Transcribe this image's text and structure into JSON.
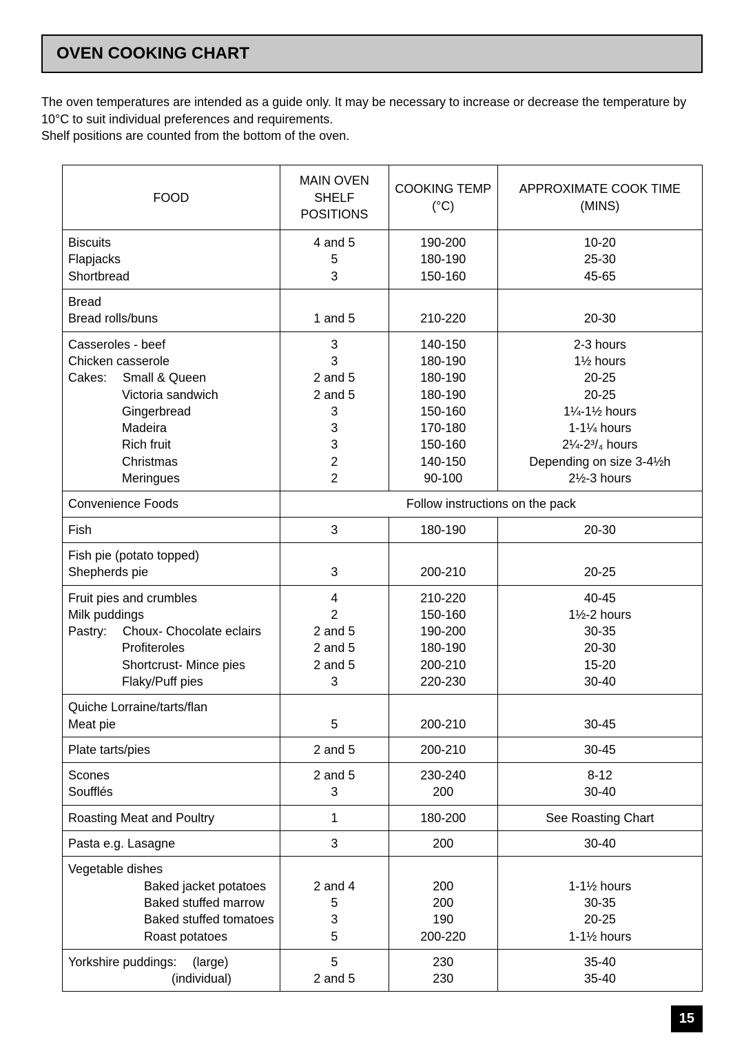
{
  "pageTitle": "OVEN COOKING CHART",
  "intro": {
    "line1": "The oven temperatures are intended as a guide only. It may be necessary to increase or decrease the temperature by 10°C to suit individual preferences and requirements.",
    "line2": "Shelf positions are counted from the bottom of the oven."
  },
  "headers": {
    "food": "FOOD",
    "shelf": "MAIN OVEN SHELF POSITIONS",
    "temp": "COOKING TEMP (°C)",
    "time": "APPROXIMATE COOK TIME (MINS)"
  },
  "rows": {
    "g1": {
      "food": [
        "Biscuits",
        "Flapjacks",
        "Shortbread"
      ],
      "shelf": [
        "4 and 5",
        "5",
        "3"
      ],
      "temp": [
        "190-200",
        "180-190",
        "150-160"
      ],
      "time": [
        "10-20",
        "25-30",
        "45-65"
      ]
    },
    "g2": {
      "food": [
        "Bread",
        "Bread rolls/buns"
      ],
      "shelf": [
        "",
        "1 and 5"
      ],
      "temp": [
        "",
        "210-220"
      ],
      "time": [
        "",
        "20-30"
      ]
    },
    "g3": {
      "foodLines": [
        {
          "text": "Casseroles - beef"
        },
        {
          "text": "Chicken casserole"
        },
        {
          "cat": "Cakes:",
          "sub": "Small & Queen"
        },
        {
          "sub": "Victoria sandwich"
        },
        {
          "sub": "Gingerbread"
        },
        {
          "sub": "Madeira"
        },
        {
          "sub": "Rich fruit"
        },
        {
          "sub": "Christmas"
        },
        {
          "sub": "Meringues"
        }
      ],
      "shelf": [
        "3",
        "3",
        "2 and 5",
        "2 and 5",
        "3",
        "3",
        "3",
        "2",
        "2"
      ],
      "temp": [
        "140-150",
        "180-190",
        "180-190",
        "180-190",
        "150-160",
        "170-180",
        "150-160",
        "140-150",
        "90-100"
      ],
      "time": [
        "2-3 hours",
        "1½ hours",
        "20-25",
        "20-25",
        "1¼-1½ hours",
        "1-1¼ hours",
        "2¼-2³/₄ hours",
        "Depending on size 3-4½h",
        "2½-3 hours"
      ]
    },
    "g4": {
      "food": "Convenience Foods",
      "note": "Follow instructions on the pack"
    },
    "g5": {
      "food": "Fish",
      "shelf": "3",
      "temp": "180-190",
      "time": "20-30"
    },
    "g6": {
      "food": [
        "Fish pie (potato topped)",
        "Shepherds pie"
      ],
      "shelf": [
        "",
        "3"
      ],
      "temp": [
        "",
        "200-210"
      ],
      "time": [
        "",
        "20-25"
      ]
    },
    "g7": {
      "foodLines": [
        {
          "text": "Fruit pies and crumbles"
        },
        {
          "text": "Milk puddings"
        },
        {
          "cat": "Pastry:",
          "sub": "Choux- Chocolate eclairs"
        },
        {
          "sub": "Profiteroles"
        },
        {
          "sub": "Shortcrust- Mince pies"
        },
        {
          "sub": "Flaky/Puff pies"
        }
      ],
      "shelf": [
        "4",
        "2",
        "2 and 5",
        "2 and 5",
        "2 and 5",
        "3"
      ],
      "temp": [
        "210-220",
        "150-160",
        "190-200",
        "180-190",
        "200-210",
        "220-230"
      ],
      "time": [
        "40-45",
        "1½-2 hours",
        "30-35",
        "20-30",
        "15-20",
        "30-40"
      ]
    },
    "g8": {
      "food": [
        "Quiche Lorraine/tarts/flan",
        "Meat pie"
      ],
      "shelf": [
        "",
        "5"
      ],
      "temp": [
        "",
        "200-210"
      ],
      "time": [
        "",
        "30-45"
      ]
    },
    "g9": {
      "food": "Plate tarts/pies",
      "shelf": "2 and 5",
      "temp": "200-210",
      "time": "30-45"
    },
    "g10": {
      "food": [
        "Scones",
        "Soufflés"
      ],
      "shelf": [
        "2 and 5",
        "3"
      ],
      "temp": [
        "230-240",
        "200"
      ],
      "time": [
        "8-12",
        "30-40"
      ]
    },
    "g11": {
      "food": "Roasting Meat and Poultry",
      "shelf": "1",
      "temp": "180-200",
      "time": "See Roasting Chart"
    },
    "g12": {
      "food": "Pasta e.g. Lasagne",
      "shelf": "3",
      "temp": "200",
      "time": "30-40"
    },
    "g13": {
      "foodLines": [
        {
          "text": "Vegetable dishes"
        },
        {
          "sub2": "Baked jacket potatoes"
        },
        {
          "sub2": "Baked stuffed marrow"
        },
        {
          "sub2": "Baked stuffed tomatoes"
        },
        {
          "sub2": "Roast potatoes"
        }
      ],
      "shelf": [
        "",
        "2 and 4",
        "5",
        "3",
        "5"
      ],
      "temp": [
        "",
        "200",
        "200",
        "190",
        "200-220"
      ],
      "time": [
        "",
        "1-1½ hours",
        "30-35",
        "20-25",
        "1-1½ hours"
      ]
    },
    "g14": {
      "foodLines": [
        {
          "cat": "Yorkshire puddings:",
          "sub3": "(large)"
        },
        {
          "sub3": "(individual)"
        }
      ],
      "shelf": [
        "5",
        "2 and 5"
      ],
      "temp": [
        "230",
        "230"
      ],
      "time": [
        "35-40",
        "35-40"
      ]
    }
  },
  "pageNumber": "15"
}
